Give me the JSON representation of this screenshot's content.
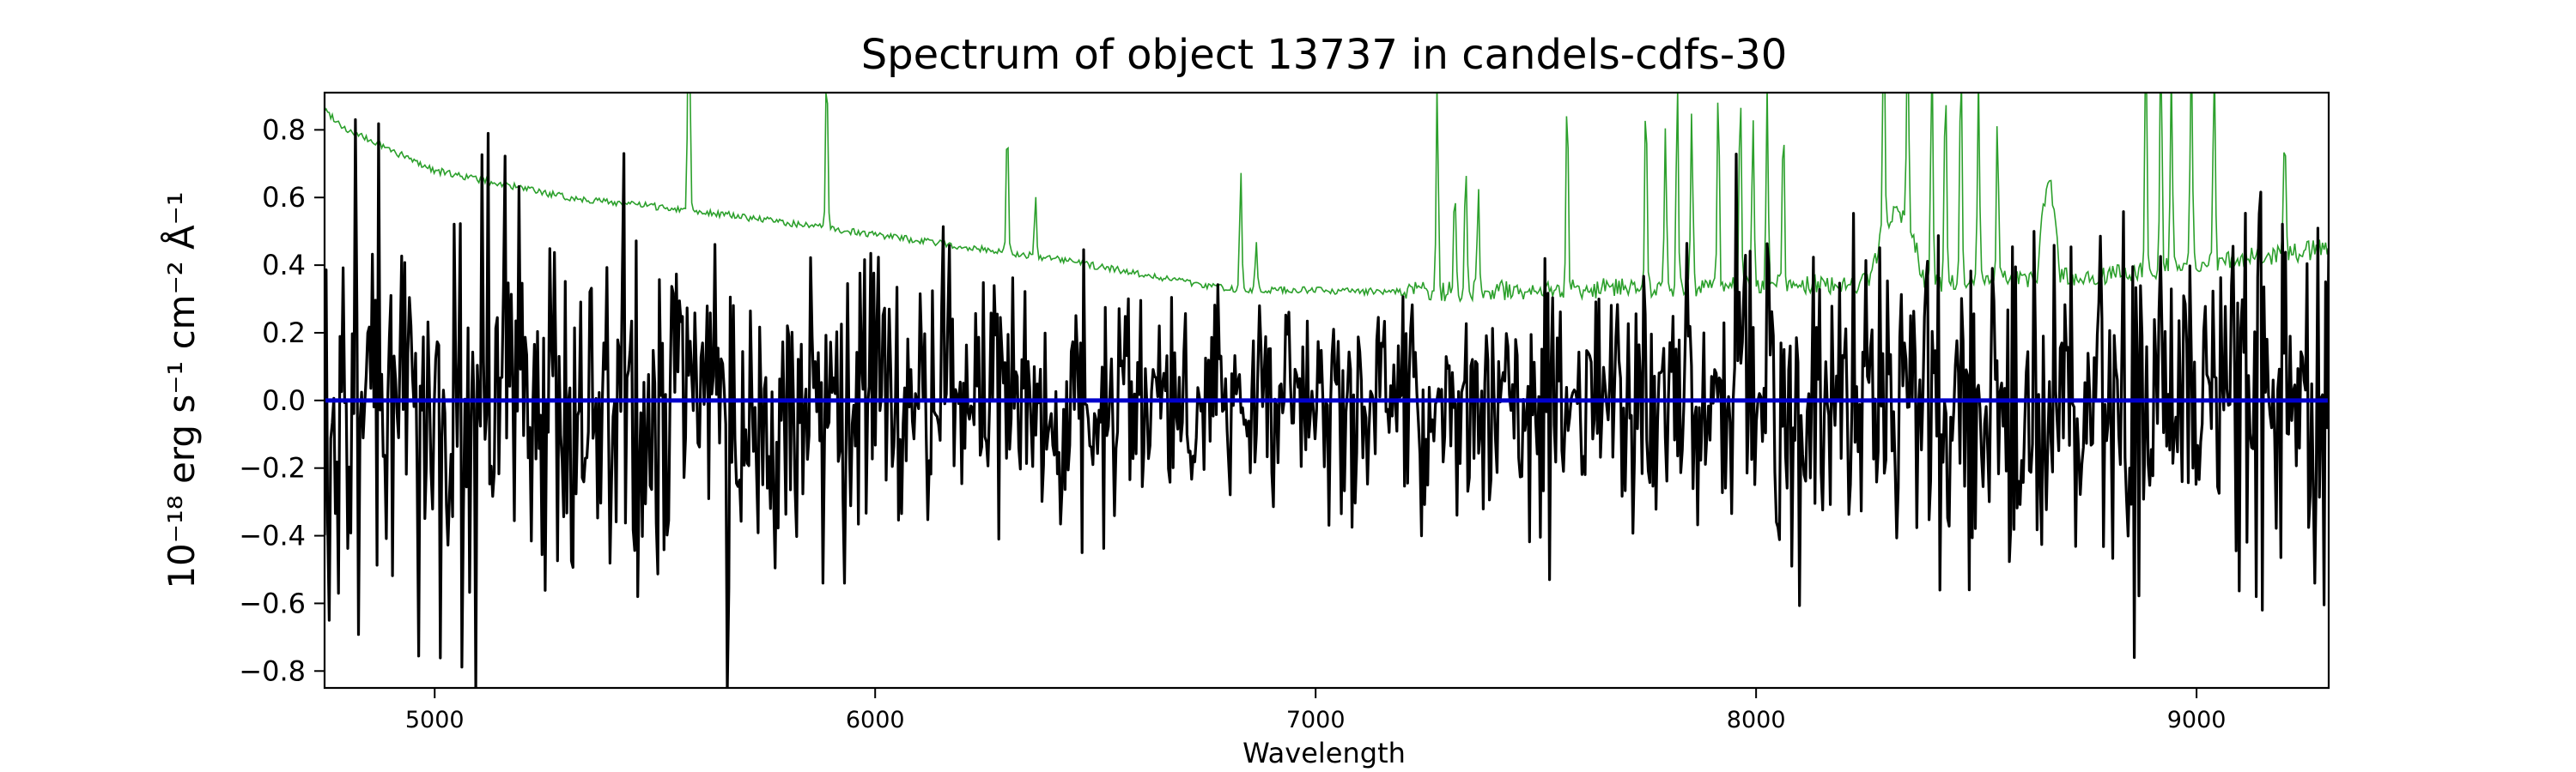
{
  "chart_data": {
    "type": "line",
    "title": "Spectrum of object 13737 in candels-cdfs-30",
    "xlabel": "Wavelength",
    "ylabel": "10⁻¹⁸ erg s⁻¹ cm⁻² Å⁻¹",
    "xlim": [
      4750,
      9300
    ],
    "ylim": [
      -0.85,
      0.91
    ],
    "grid": false,
    "x_ticks": [
      5000,
      6000,
      7000,
      8000,
      9000
    ],
    "x_tick_labels": [
      "5000",
      "6000",
      "7000",
      "8000",
      "9000"
    ],
    "y_ticks": [
      0.8,
      0.6,
      0.4,
      0.2,
      0.0,
      -0.2,
      -0.4,
      -0.6,
      -0.8
    ],
    "y_tick_labels": [
      "0.8",
      "0.6",
      "0.4",
      "0.2",
      "0.0",
      "−0.2",
      "−0.4",
      "−0.6",
      "−0.8"
    ],
    "series": [
      {
        "role": "flux",
        "color": "#000000",
        "x_range": [
          4750,
          9300
        ],
        "n_points": 1300,
        "seed": 13737,
        "noise_sigma": [
          [
            4750,
            0.3
          ],
          [
            5500,
            0.25
          ],
          [
            6500,
            0.17
          ],
          [
            7200,
            0.15
          ],
          [
            8000,
            0.21
          ],
          [
            8800,
            0.26
          ],
          [
            9300,
            0.28
          ]
        ],
        "notable_points": [
          {
            "x": 4760,
            "y": -0.65
          },
          {
            "x": 4820,
            "y": 0.83
          },
          {
            "x": 4780,
            "y": -0.57
          },
          {
            "x": 5430,
            "y": 0.73
          },
          {
            "x": 5460,
            "y": -0.58
          },
          {
            "x": 5880,
            "y": -0.54
          },
          {
            "x": 5930,
            "y": -0.54
          },
          {
            "x": 6280,
            "y": -0.41
          },
          {
            "x": 6470,
            "y": -0.45
          },
          {
            "x": 7240,
            "y": -0.4
          },
          {
            "x": 7530,
            "y": -0.53
          },
          {
            "x": 8080,
            "y": -0.49
          },
          {
            "x": 8860,
            "y": -0.76
          },
          {
            "x": 9150,
            "y": -0.62
          },
          {
            "x": 9270,
            "y": -0.54
          },
          {
            "x": 9300,
            "y": 0.45
          }
        ]
      },
      {
        "role": "error",
        "color": "#2ca02c",
        "x_range": [
          4750,
          9300
        ],
        "n_points": 1300,
        "continuum": [
          [
            4750,
            0.86
          ],
          [
            4800,
            0.8
          ],
          [
            5000,
            0.68
          ],
          [
            5300,
            0.6
          ],
          [
            5600,
            0.56
          ],
          [
            6000,
            0.49
          ],
          [
            6400,
            0.42
          ],
          [
            6800,
            0.33
          ],
          [
            7200,
            0.32
          ],
          [
            7600,
            0.33
          ],
          [
            8000,
            0.34
          ],
          [
            8400,
            0.35
          ],
          [
            8800,
            0.37
          ],
          [
            9300,
            0.45
          ]
        ],
        "emission_lines": [
          {
            "x": 5577,
            "h": 0.8
          },
          {
            "x": 5890,
            "h": 0.5
          },
          {
            "x": 6300,
            "h": 0.4
          },
          {
            "x": 6364,
            "h": 0.18
          },
          {
            "x": 6830,
            "h": 0.35
          },
          {
            "x": 6865,
            "h": 0.15
          },
          {
            "x": 7276,
            "h": 0.6
          },
          {
            "x": 7316,
            "h": 0.3
          },
          {
            "x": 7341,
            "h": 0.4
          },
          {
            "x": 7369,
            "h": 0.3
          },
          {
            "x": 7571,
            "h": 0.6
          },
          {
            "x": 7750,
            "h": 0.6
          },
          {
            "x": 7794,
            "h": 0.5
          },
          {
            "x": 7821,
            "h": 0.6
          },
          {
            "x": 7854,
            "h": 0.5
          },
          {
            "x": 7914,
            "h": 0.6
          },
          {
            "x": 7964,
            "h": 0.6
          },
          {
            "x": 7993,
            "h": 0.5
          },
          {
            "x": 8025,
            "h": 0.6
          },
          {
            "x": 8062,
            "h": 0.5
          },
          {
            "x": 8290,
            "h": 0.7
          },
          {
            "x": 8344,
            "h": 0.7
          },
          {
            "x": 8399,
            "h": 0.7
          },
          {
            "x": 8430,
            "h": 0.6
          },
          {
            "x": 8465,
            "h": 0.7
          },
          {
            "x": 8505,
            "h": 0.6
          },
          {
            "x": 8548,
            "h": 0.5
          },
          {
            "x": 8885,
            "h": 0.7
          },
          {
            "x": 8919,
            "h": 0.7
          },
          {
            "x": 8943,
            "h": 0.6
          },
          {
            "x": 8988,
            "h": 0.7
          },
          {
            "x": 9040,
            "h": 0.6
          },
          {
            "x": 9200,
            "h": 0.4
          }
        ],
        "broad_bands": [
          {
            "x_range": [
              8260,
              8380
            ],
            "h": 0.2
          },
          {
            "x_range": [
              8640,
              8690
            ],
            "h": 0.27
          }
        ]
      },
      {
        "role": "zero",
        "color": "#0000cc",
        "x": [
          4750,
          9300
        ],
        "values": [
          0.0,
          0.0
        ]
      }
    ]
  }
}
